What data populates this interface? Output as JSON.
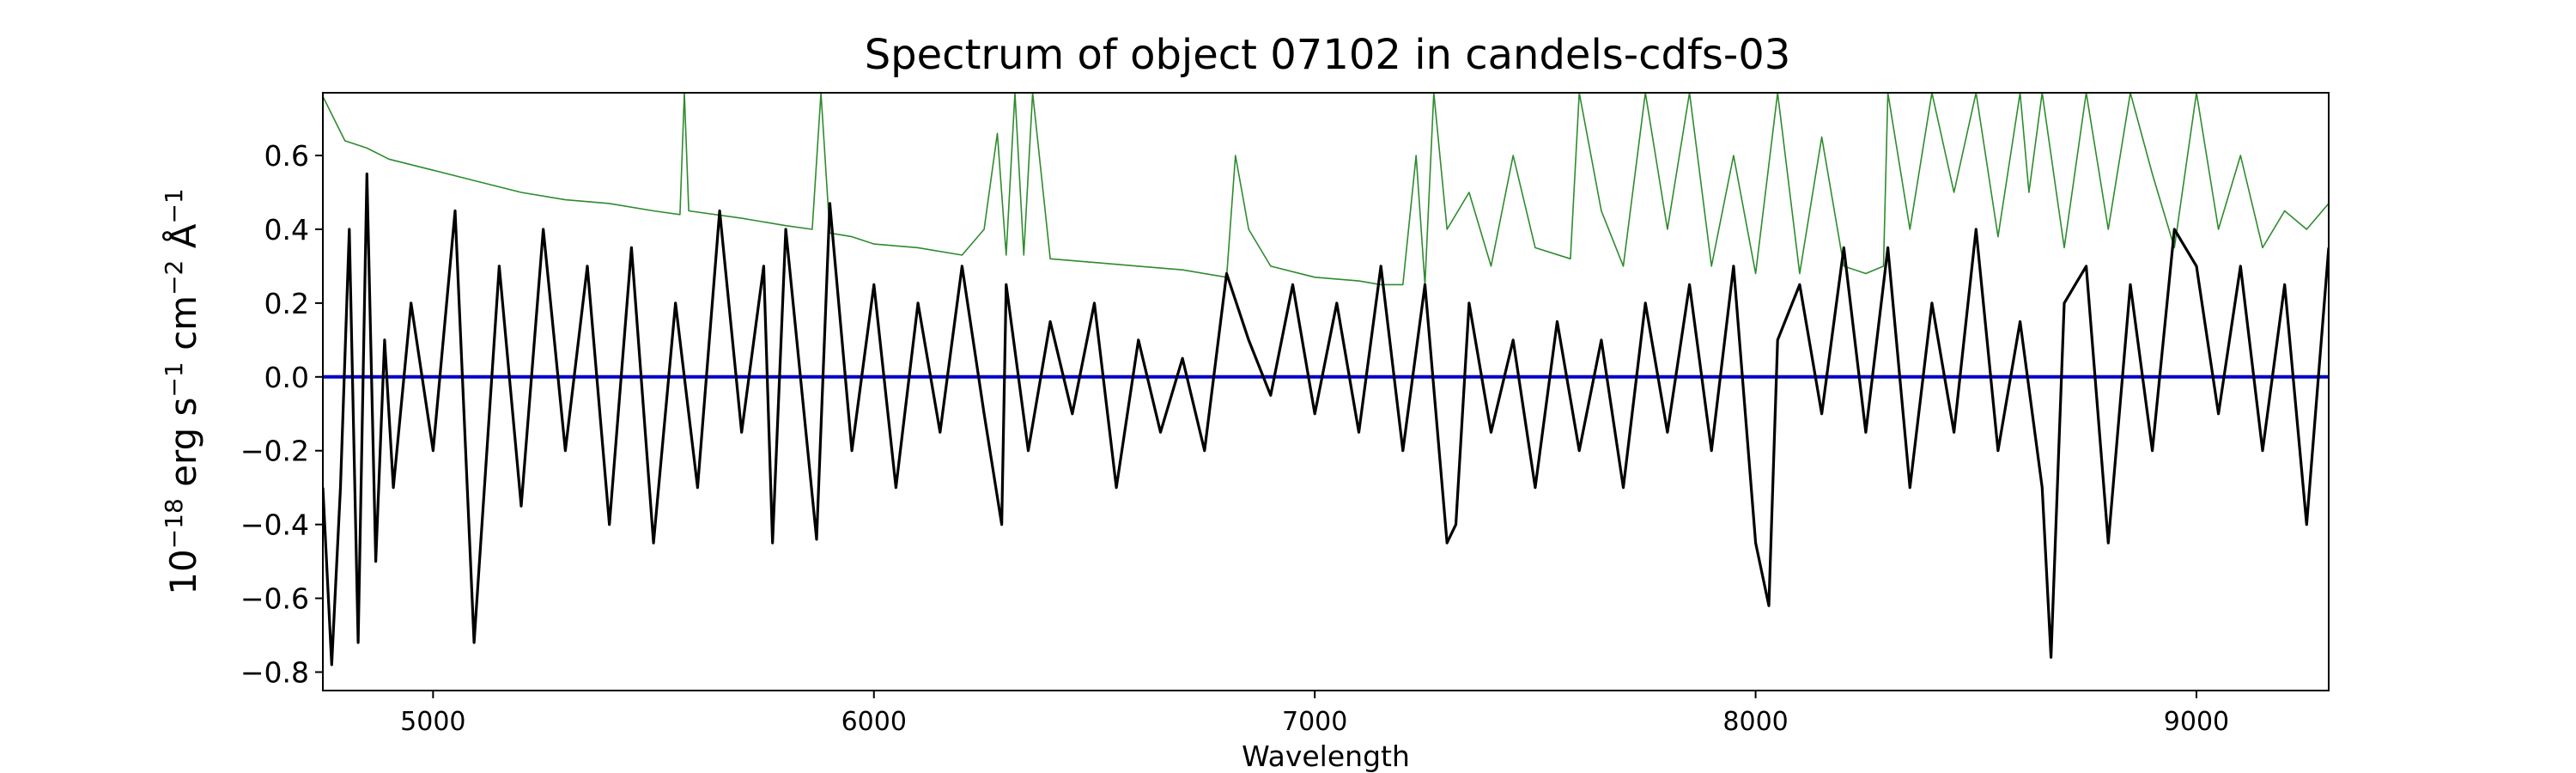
{
  "chart_data": {
    "type": "line",
    "title": "Spectrum of object 07102 in candels-cdfs-03",
    "xlabel": "Wavelength",
    "ylabel": {
      "base": "10",
      "exp1": "−18",
      "unit_erg": " erg s",
      "exp2": "−1",
      "unit_cm": " cm",
      "exp3": "−2",
      "unit_ang": " Å",
      "exp4": "−1"
    },
    "xlim": [
      4750,
      9300
    ],
    "ylim": [
      -0.85,
      0.77
    ],
    "x_ticks": [
      5000,
      6000,
      7000,
      8000,
      9000
    ],
    "x_tick_labels": [
      "5000",
      "6000",
      "7000",
      "8000",
      "9000"
    ],
    "y_ticks": [
      -0.8,
      -0.6,
      -0.4,
      -0.2,
      0.0,
      0.2,
      0.4,
      0.6
    ],
    "y_tick_labels": [
      "−0.8",
      "−0.6",
      "−0.4",
      "−0.2",
      "0.0",
      "0.2",
      "0.4",
      "0.6"
    ],
    "grid": false,
    "colors": {
      "flux": "#000000",
      "error": "#2e8b2e",
      "zero": "#0000cc"
    },
    "series": [
      {
        "role": "flux",
        "x": [
          4750,
          4770,
          4790,
          4810,
          4830,
          4850,
          4870,
          4890,
          4910,
          4950,
          5000,
          5050,
          5093,
          5150,
          5200,
          5250,
          5300,
          5350,
          5400,
          5450,
          5500,
          5550,
          5600,
          5650,
          5700,
          5750,
          5770,
          5800,
          5870,
          5900,
          5950,
          6000,
          6050,
          6100,
          6150,
          6200,
          6250,
          6290,
          6300,
          6350,
          6400,
          6450,
          6500,
          6550,
          6600,
          6650,
          6700,
          6750,
          6800,
          6850,
          6900,
          6950,
          7000,
          7050,
          7100,
          7150,
          7200,
          7250,
          7300,
          7320,
          7350,
          7400,
          7450,
          7500,
          7550,
          7600,
          7650,
          7700,
          7750,
          7800,
          7850,
          7900,
          7950,
          8000,
          8030,
          8050,
          8100,
          8150,
          8200,
          8250,
          8300,
          8350,
          8400,
          8450,
          8500,
          8550,
          8600,
          8650,
          8670,
          8700,
          8750,
          8800,
          8850,
          8900,
          8950,
          9000,
          9050,
          9100,
          9150,
          9200,
          9250,
          9300
        ],
        "y": [
          -0.3,
          -0.78,
          -0.3,
          0.4,
          -0.72,
          0.55,
          -0.5,
          0.1,
          -0.3,
          0.2,
          -0.2,
          0.45,
          -0.72,
          0.3,
          -0.35,
          0.4,
          -0.2,
          0.3,
          -0.4,
          0.35,
          -0.45,
          0.2,
          -0.3,
          0.45,
          -0.15,
          0.3,
          -0.45,
          0.4,
          -0.44,
          0.47,
          -0.2,
          0.25,
          -0.3,
          0.2,
          -0.15,
          0.3,
          -0.1,
          -0.4,
          0.25,
          -0.2,
          0.15,
          -0.1,
          0.2,
          -0.3,
          0.1,
          -0.15,
          0.05,
          -0.2,
          0.28,
          0.1,
          -0.05,
          0.25,
          -0.1,
          0.2,
          -0.15,
          0.3,
          -0.2,
          0.25,
          -0.45,
          -0.4,
          0.2,
          -0.15,
          0.1,
          -0.3,
          0.15,
          -0.2,
          0.1,
          -0.3,
          0.2,
          -0.15,
          0.25,
          -0.2,
          0.3,
          -0.45,
          -0.62,
          0.1,
          0.25,
          -0.1,
          0.35,
          -0.15,
          0.35,
          -0.3,
          0.2,
          -0.15,
          0.4,
          -0.2,
          0.15,
          -0.3,
          -0.76,
          0.2,
          0.3,
          -0.45,
          0.25,
          -0.2,
          0.4,
          0.3,
          -0.1,
          0.3,
          -0.2,
          0.25,
          -0.4,
          0.35
        ]
      },
      {
        "role": "error",
        "x": [
          4750,
          4800,
          4850,
          4900,
          5000,
          5100,
          5200,
          5300,
          5400,
          5500,
          5560,
          5570,
          5580,
          5700,
          5800,
          5860,
          5880,
          5900,
          5950,
          6000,
          6100,
          6200,
          6250,
          6280,
          6300,
          6320,
          6340,
          6360,
          6400,
          6500,
          6600,
          6700,
          6800,
          6820,
          6850,
          6900,
          7000,
          7100,
          7150,
          7200,
          7230,
          7250,
          7270,
          7300,
          7350,
          7400,
          7450,
          7500,
          7580,
          7600,
          7650,
          7700,
          7750,
          7800,
          7850,
          7900,
          7950,
          8000,
          8050,
          8100,
          8150,
          8200,
          8250,
          8290,
          8300,
          8350,
          8400,
          8450,
          8500,
          8550,
          8600,
          8620,
          8650,
          8700,
          8750,
          8800,
          8850,
          8900,
          8950,
          9000,
          9050,
          9100,
          9150,
          9200,
          9250,
          9300
        ],
        "y": [
          0.76,
          0.64,
          0.62,
          0.59,
          0.56,
          0.53,
          0.5,
          0.48,
          0.47,
          0.45,
          0.44,
          0.77,
          0.45,
          0.43,
          0.41,
          0.4,
          0.77,
          0.39,
          0.38,
          0.36,
          0.35,
          0.33,
          0.4,
          0.66,
          0.33,
          0.77,
          0.33,
          0.77,
          0.32,
          0.31,
          0.3,
          0.29,
          0.27,
          0.6,
          0.4,
          0.3,
          0.27,
          0.26,
          0.25,
          0.25,
          0.6,
          0.25,
          0.77,
          0.4,
          0.5,
          0.3,
          0.6,
          0.35,
          0.32,
          0.77,
          0.45,
          0.3,
          0.77,
          0.4,
          0.77,
          0.3,
          0.6,
          0.28,
          0.77,
          0.28,
          0.65,
          0.3,
          0.28,
          0.3,
          0.77,
          0.4,
          0.77,
          0.5,
          0.77,
          0.38,
          0.77,
          0.5,
          0.77,
          0.35,
          0.77,
          0.4,
          0.77,
          0.55,
          0.35,
          0.77,
          0.4,
          0.6,
          0.35,
          0.45,
          0.4,
          0.47
        ]
      },
      {
        "role": "zero",
        "x": [
          4750,
          9300
        ],
        "y": [
          0,
          0
        ]
      }
    ]
  }
}
